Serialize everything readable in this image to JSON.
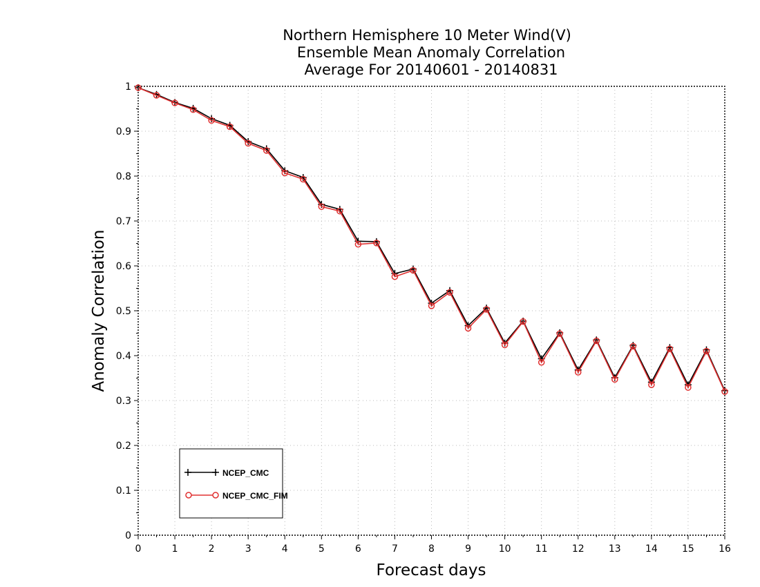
{
  "chart_data": {
    "type": "line",
    "title_lines": [
      "Northern Hemisphere 10 Meter Wind(V)",
      "Ensemble Mean Anomaly Correlation",
      "Average For 20140601 - 20140831"
    ],
    "xlabel": "Forecast days",
    "ylabel": "Anomaly Correlation",
    "xlim": [
      0,
      16
    ],
    "ylim": [
      0,
      1
    ],
    "x_ticks": [
      "0",
      "1",
      "2",
      "3",
      "4",
      "5",
      "6",
      "7",
      "8",
      "9",
      "10",
      "11",
      "12",
      "13",
      "14",
      "15",
      "16"
    ],
    "y_ticks": [
      "0",
      "0.1",
      "0.2",
      "0.3",
      "0.4",
      "0.5",
      "0.6",
      "0.7",
      "0.8",
      "0.9",
      "1"
    ],
    "grid": true,
    "legend_position": "bottom-left",
    "x": [
      0,
      0.5,
      1,
      1.5,
      2,
      2.5,
      3,
      3.5,
      4,
      4.5,
      5,
      5.5,
      6,
      6.5,
      7,
      7.5,
      8,
      8.5,
      9,
      9.5,
      10,
      10.5,
      11,
      11.5,
      12,
      12.5,
      13,
      13.5,
      14,
      14.5,
      15,
      15.5,
      16
    ],
    "series": [
      {
        "name": "NCEP_CMC",
        "color": "#000000",
        "marker": "plus",
        "values": [
          0.997,
          0.982,
          0.964,
          0.951,
          0.928,
          0.913,
          0.877,
          0.861,
          0.812,
          0.797,
          0.737,
          0.726,
          0.655,
          0.654,
          0.583,
          0.593,
          0.517,
          0.545,
          0.467,
          0.506,
          0.428,
          0.477,
          0.393,
          0.451,
          0.368,
          0.435,
          0.351,
          0.423,
          0.341,
          0.418,
          0.335,
          0.413,
          0.322
        ]
      },
      {
        "name": "NCEP_CMC_FIM",
        "color": "#e03030",
        "marker": "circle",
        "values": [
          0.997,
          0.98,
          0.963,
          0.948,
          0.924,
          0.91,
          0.873,
          0.857,
          0.807,
          0.793,
          0.732,
          0.722,
          0.648,
          0.651,
          0.576,
          0.59,
          0.511,
          0.541,
          0.461,
          0.503,
          0.424,
          0.476,
          0.385,
          0.449,
          0.363,
          0.433,
          0.347,
          0.421,
          0.335,
          0.415,
          0.329,
          0.41,
          0.32
        ]
      }
    ]
  }
}
